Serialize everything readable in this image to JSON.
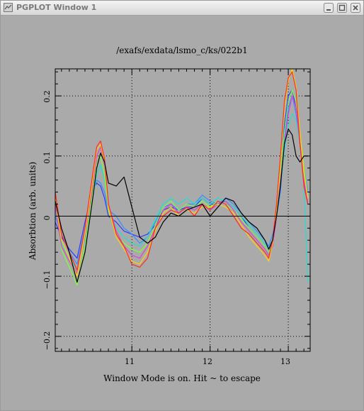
{
  "window": {
    "title": "PGPLOT Window 1"
  },
  "plot": {
    "title": "/exafs/exdata/lsmo_c/ks/022b1",
    "status": "Window Mode is on.  Hit ~ to escape",
    "ylabel": "Absorbtion (arb. units)",
    "xticks": [
      "11",
      "12",
      "13"
    ],
    "yticks": [
      "0.2",
      "0.1",
      "0",
      "−0.1",
      "−0.2"
    ]
  },
  "chart_data": {
    "type": "line",
    "xlim": [
      10.02,
      13.28
    ],
    "ylim": [
      -0.225,
      0.245
    ],
    "grid": true,
    "x": [
      10.02,
      10.1,
      10.2,
      10.3,
      10.4,
      10.5,
      10.55,
      10.6,
      10.65,
      10.7,
      10.8,
      10.9,
      11.0,
      11.1,
      11.2,
      11.3,
      11.4,
      11.5,
      11.6,
      11.7,
      11.8,
      11.9,
      12.0,
      12.1,
      12.2,
      12.3,
      12.4,
      12.5,
      12.6,
      12.7,
      12.75,
      12.8,
      12.85,
      12.9,
      12.95,
      13.0,
      13.05,
      13.1,
      13.15,
      13.2,
      13.25
    ],
    "series": [
      {
        "color": "#000000",
        "values": [
          0.025,
          -0.02,
          -0.06,
          -0.11,
          -0.06,
          0.03,
          0.08,
          0.105,
          0.09,
          0.055,
          0.05,
          0.065,
          0.015,
          -0.035,
          -0.045,
          -0.035,
          -0.01,
          0.005,
          0.0,
          0.01,
          0.015,
          0.02,
          0.0,
          0.015,
          0.03,
          0.025,
          0.005,
          -0.01,
          -0.02,
          -0.04,
          -0.055,
          -0.04,
          0.0,
          0.05,
          0.12,
          0.145,
          0.135,
          0.1,
          0.09,
          0.1,
          0.1
        ]
      },
      {
        "color": "#ff2a2a",
        "values": [
          0.04,
          -0.03,
          -0.06,
          -0.09,
          -0.02,
          0.07,
          0.115,
          0.125,
          0.095,
          0.02,
          -0.03,
          -0.05,
          -0.08,
          -0.085,
          -0.07,
          -0.02,
          0.0,
          0.01,
          0.005,
          0.015,
          0.0,
          0.02,
          0.01,
          0.025,
          0.02,
          0.0,
          -0.02,
          -0.03,
          -0.045,
          -0.06,
          -0.07,
          -0.04,
          0.02,
          0.1,
          0.19,
          0.23,
          0.24,
          0.21,
          0.12,
          0.05,
          0.02
        ]
      },
      {
        "color": "#ffd400",
        "values": [
          0.03,
          -0.04,
          -0.07,
          -0.1,
          -0.03,
          0.06,
          0.11,
          0.12,
          0.09,
          0.015,
          -0.035,
          -0.055,
          -0.075,
          -0.08,
          -0.06,
          -0.025,
          0.005,
          0.015,
          0.0,
          0.01,
          0.005,
          0.015,
          0.015,
          0.02,
          0.015,
          0.005,
          -0.015,
          -0.035,
          -0.05,
          -0.065,
          -0.075,
          -0.045,
          0.01,
          0.09,
          0.18,
          0.225,
          0.245,
          0.215,
          0.14,
          0.07,
          0.03
        ]
      },
      {
        "color": "#e040d0",
        "values": [
          0.02,
          -0.05,
          -0.075,
          -0.095,
          -0.035,
          0.05,
          0.1,
          0.115,
          0.085,
          0.02,
          -0.025,
          -0.05,
          -0.065,
          -0.07,
          -0.05,
          -0.02,
          0.01,
          0.02,
          0.005,
          0.015,
          0.01,
          0.02,
          0.01,
          0.02,
          0.025,
          0.01,
          -0.01,
          -0.025,
          -0.04,
          -0.055,
          -0.065,
          -0.05,
          0.0,
          0.06,
          0.12,
          0.17,
          0.2,
          0.18,
          0.12,
          0.06,
          0.02
        ]
      },
      {
        "color": "#7cff3a",
        "values": [
          0.025,
          -0.055,
          -0.085,
          -0.115,
          -0.05,
          0.04,
          0.085,
          0.1,
          0.07,
          0.01,
          -0.03,
          -0.045,
          -0.055,
          -0.06,
          -0.045,
          -0.015,
          0.015,
          0.025,
          0.01,
          0.02,
          0.015,
          0.025,
          0.015,
          0.025,
          0.02,
          0.01,
          -0.005,
          -0.02,
          -0.035,
          -0.05,
          -0.06,
          -0.045,
          0.0,
          0.07,
          0.14,
          0.19,
          0.21,
          0.19,
          0.14,
          0.08,
          0.03
        ]
      },
      {
        "color": "#20e0d0",
        "values": [
          0.015,
          -0.045,
          -0.07,
          -0.09,
          -0.04,
          0.03,
          0.07,
          0.085,
          0.06,
          0.015,
          -0.02,
          -0.035,
          -0.045,
          -0.05,
          -0.035,
          -0.005,
          0.02,
          0.03,
          0.02,
          0.03,
          0.02,
          0.03,
          0.02,
          0.03,
          0.025,
          0.015,
          0.0,
          -0.015,
          -0.03,
          -0.045,
          -0.055,
          -0.04,
          0.0,
          0.05,
          0.11,
          0.15,
          0.17,
          0.16,
          0.12,
          0.05,
          -0.11
        ]
      },
      {
        "color": "#3a8cff",
        "values": [
          0.0,
          -0.03,
          -0.06,
          -0.08,
          -0.02,
          0.04,
          0.06,
          0.055,
          0.04,
          0.01,
          0.0,
          -0.02,
          -0.03,
          -0.045,
          -0.035,
          -0.01,
          0.015,
          0.02,
          0.01,
          0.02,
          0.02,
          0.035,
          0.025,
          0.02,
          0.03,
          0.02,
          0.005,
          -0.01,
          -0.025,
          -0.04,
          -0.05,
          -0.03,
          0.0,
          0.04,
          0.13,
          0.18,
          0.2,
          0.17,
          0.12,
          0.08,
          0.04
        ]
      },
      {
        "color": "#2a3cff",
        "values": [
          -0.01,
          -0.035,
          -0.055,
          -0.07,
          -0.01,
          0.045,
          0.055,
          0.05,
          0.03,
          0.0,
          -0.01,
          -0.025,
          -0.03,
          -0.035,
          -0.03,
          -0.015,
          0.01,
          0.015,
          0.01,
          0.015,
          0.015,
          0.03,
          0.02,
          0.02,
          0.025,
          0.015,
          0.0,
          -0.02,
          -0.035,
          -0.05,
          -0.06,
          -0.04,
          0.0,
          0.06,
          0.15,
          0.2,
          0.21,
          0.18,
          0.12,
          0.06,
          0.02
        ]
      }
    ]
  }
}
